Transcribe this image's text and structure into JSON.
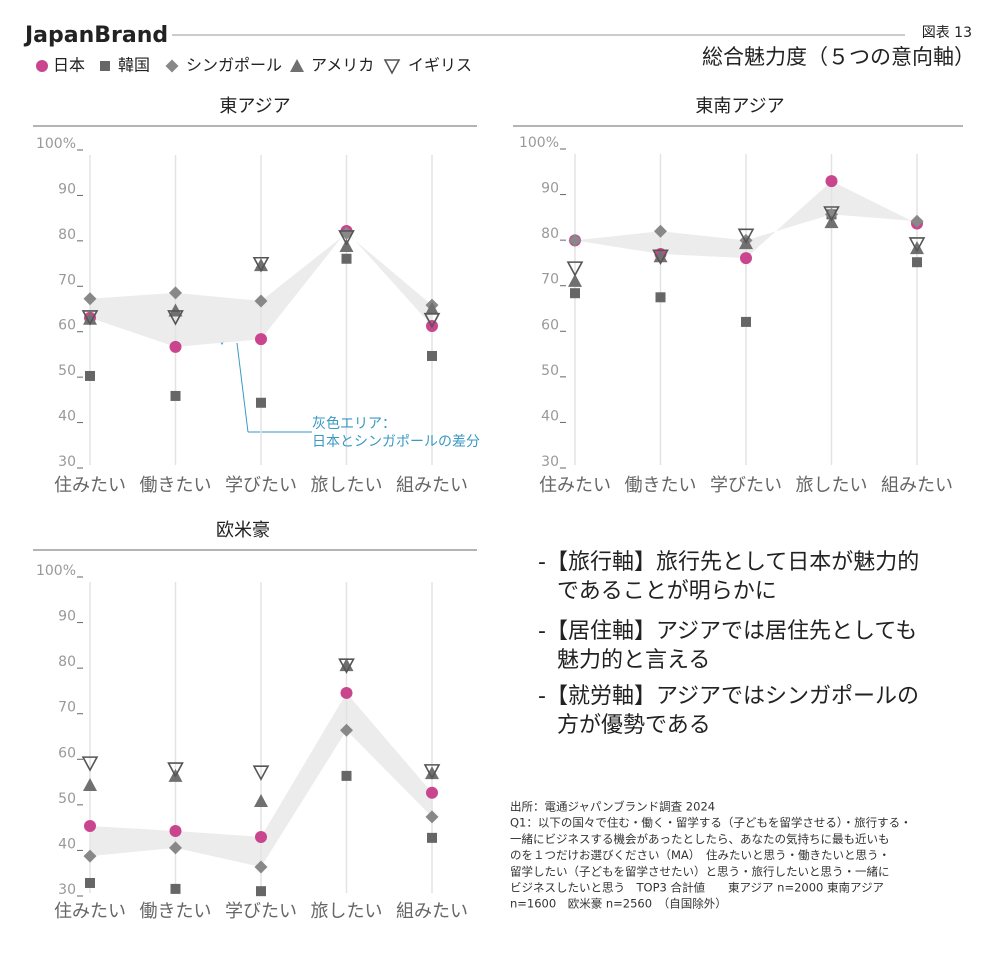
{
  "header": {
    "brand": "JapanBrand",
    "figure": "図表 13",
    "title": "総合魅力度（５つの意向軸）"
  },
  "chart_data": [
    {
      "type": "line",
      "title": "東アジア",
      "categories": [
        "住みたい",
        "働きたい",
        "学びたい",
        "旅したい",
        "組みたい"
      ],
      "ylim": [
        30,
        100
      ],
      "yticks": [
        30,
        40,
        50,
        60,
        70,
        80,
        90,
        {
          "value": 100,
          "label": "100%"
        }
      ],
      "grid": "vertical",
      "band": {
        "between": [
          0,
          2
        ],
        "color": "#ececec"
      },
      "annotation": [
        "灰色エリア：",
        "日本とシンガポールの差分"
      ],
      "annotation_color": "#3a9ac4",
      "series": [
        {
          "name": "日本",
          "color": "#c9468f",
          "marker": "circle",
          "values": [
            62.4,
            56,
            57.7,
            81.5,
            60.6
          ]
        },
        {
          "name": "韓国",
          "color": "#666666",
          "marker": "square",
          "values": [
            49.6,
            45.2,
            43.7,
            75.4,
            54
          ]
        },
        {
          "name": "シンガポール",
          "color": "#888888",
          "marker": "diamond",
          "values": [
            66.6,
            67.9,
            66.1,
            81,
            65.2
          ]
        },
        {
          "name": "アメリカ",
          "color": "#707070",
          "marker": "triangle-up",
          "values": [
            62.2,
            64,
            74,
            78.2,
            64.4
          ]
        },
        {
          "name": "イギリス",
          "color": "#555555",
          "marker": "triangle-down-open",
          "values": [
            62.6,
            62.6,
            74.3,
            80.2,
            62
          ]
        }
      ]
    },
    {
      "type": "line",
      "title": "東南アジア",
      "categories": [
        "住みたい",
        "働きたい",
        "学びたい",
        "旅したい",
        "組みたい"
      ],
      "ylim": [
        30,
        100
      ],
      "yticks": [
        30,
        40,
        50,
        60,
        70,
        80,
        90,
        {
          "value": 100,
          "label": "100%"
        }
      ],
      "grid": "vertical",
      "band": {
        "between": [
          0,
          2
        ],
        "color": "#ececec"
      },
      "series": [
        {
          "name": "日本",
          "color": "#c9468f",
          "marker": "circle",
          "values": [
            79.3,
            76.3,
            75.4,
            92.3,
            83
          ]
        },
        {
          "name": "韓国",
          "color": "#666666",
          "marker": "square",
          "values": [
            67.7,
            66.8,
            61.4,
            85,
            74.5
          ]
        },
        {
          "name": "シンガポール",
          "color": "#888888",
          "marker": "diamond",
          "values": [
            79.3,
            81.3,
            79.3,
            85,
            83.5
          ]
        },
        {
          "name": "アメリカ",
          "color": "#707070",
          "marker": "triangle-up",
          "values": [
            70.4,
            75.8,
            78.7,
            83.3,
            77.6
          ]
        },
        {
          "name": "イギリス",
          "color": "#555555",
          "marker": "triangle-down-open",
          "values": [
            73.2,
            75.8,
            80.4,
            85.3,
            78.5
          ]
        }
      ]
    },
    {
      "type": "line",
      "title": "欧米豪",
      "categories": [
        "住みたい",
        "働きたい",
        "学びたい",
        "旅したい",
        "組みたい"
      ],
      "ylim": [
        30,
        100
      ],
      "yticks": [
        30,
        40,
        50,
        60,
        70,
        80,
        90,
        {
          "value": 100,
          "label": "100%"
        }
      ],
      "grid": "vertical",
      "band": {
        "between": [
          0,
          2
        ],
        "color": "#ececec"
      },
      "series": [
        {
          "name": "日本",
          "color": "#c9468f",
          "marker": "circle",
          "values": [
            44.7,
            43.6,
            42.3,
            73.9,
            52
          ]
        },
        {
          "name": "韓国",
          "color": "#666666",
          "marker": "square",
          "values": [
            32.2,
            30.9,
            30.4,
            55.7,
            42.1
          ]
        },
        {
          "name": "シンガポール",
          "color": "#888888",
          "marker": "diamond",
          "values": [
            38.1,
            39.9,
            35.7,
            65.7,
            46.7
          ]
        },
        {
          "name": "アメリカ",
          "color": "#707070",
          "marker": "triangle-up",
          "values": [
            53.7,
            55.7,
            50.2,
            80,
            56.3
          ]
        },
        {
          "name": "イギリス",
          "color": "#555555",
          "marker": "triangle-down-open",
          "values": [
            58.5,
            57.2,
            56.5,
            80,
            56.8
          ]
        }
      ]
    }
  ],
  "bullets": [
    [
      "-【旅行軸】旅行先として日本が魅力的",
      "であることが明らかに"
    ],
    [
      "-【居住軸】アジアでは居住先としても",
      "魅力的と言える"
    ],
    [
      "-【就労軸】アジアではシンガポールの",
      "方が優勢である"
    ]
  ],
  "note": [
    "出所：電通ジャパンブランド調査 2024",
    "Q1：以下の国々で住む・働く・留学する（子どもを留学させる）・旅行する・",
    "一緒にビジネスする機会があったとしたら、あなたの気持ちに最も近いも",
    "のを１つだけお選びください（MA）　住みたいと思う・働きたいと思う・",
    "留学したい（子どもを留学させたい）と思う・旅行したいと思う・一緒に",
    "ビジネスしたいと思う　TOP3 合計値　　東アジア n=2000 東南アジア",
    "n=1600　欧米豪 n=2560　（自国除外）"
  ]
}
